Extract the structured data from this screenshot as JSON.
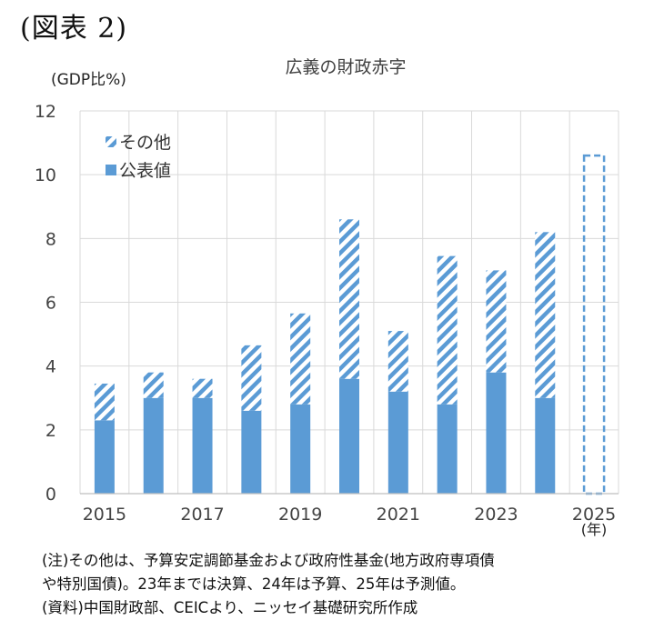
{
  "figure_label": "(図表 2)",
  "notes": [
    "(注)その他は、予算安定調節基金および政府性基金(地方政府専項債",
    "や特別国債)。23年までは決算、24年は予算、25年は予測値。",
    "(資料)中国財政部、CEICより、ニッセイ基礎研究所作成"
  ],
  "colors": {
    "solid": "#5b9bd5",
    "hatch": "#5b9bd5",
    "grid": "#d9d9d9",
    "axis": "#595959"
  },
  "chart_data": {
    "type": "bar",
    "stacked": true,
    "title": "広義の財政赤字",
    "ylabel": "(GDP比%)",
    "xunit": "(年)",
    "ylim": [
      0,
      12
    ],
    "yticks": [
      0,
      2,
      4,
      6,
      8,
      10,
      12
    ],
    "categories": [
      "2015",
      "2016",
      "2017",
      "2018",
      "2019",
      "2020",
      "2021",
      "2022",
      "2023",
      "2024",
      "2025"
    ],
    "xtick_labels": [
      "2015",
      "",
      "2017",
      "",
      "2019",
      "",
      "2021",
      "",
      "2023",
      "",
      "2025"
    ],
    "series": [
      {
        "name": "公表値",
        "style": "solid",
        "values": [
          2.3,
          3.0,
          3.0,
          2.6,
          2.8,
          3.6,
          3.2,
          2.8,
          3.8,
          3.0,
          null
        ]
      },
      {
        "name": "その他",
        "style": "hatched",
        "values": [
          1.15,
          0.8,
          0.6,
          2.05,
          2.85,
          5.0,
          1.9,
          4.65,
          3.2,
          5.2,
          null
        ]
      }
    ],
    "forecast": {
      "category": "2025",
      "total": 10.6,
      "style": "dashed-outline"
    },
    "legend": [
      {
        "name": "その他",
        "style": "hatched"
      },
      {
        "name": "公表値",
        "style": "solid"
      }
    ],
    "legend_position": "top-left",
    "grid": true
  }
}
